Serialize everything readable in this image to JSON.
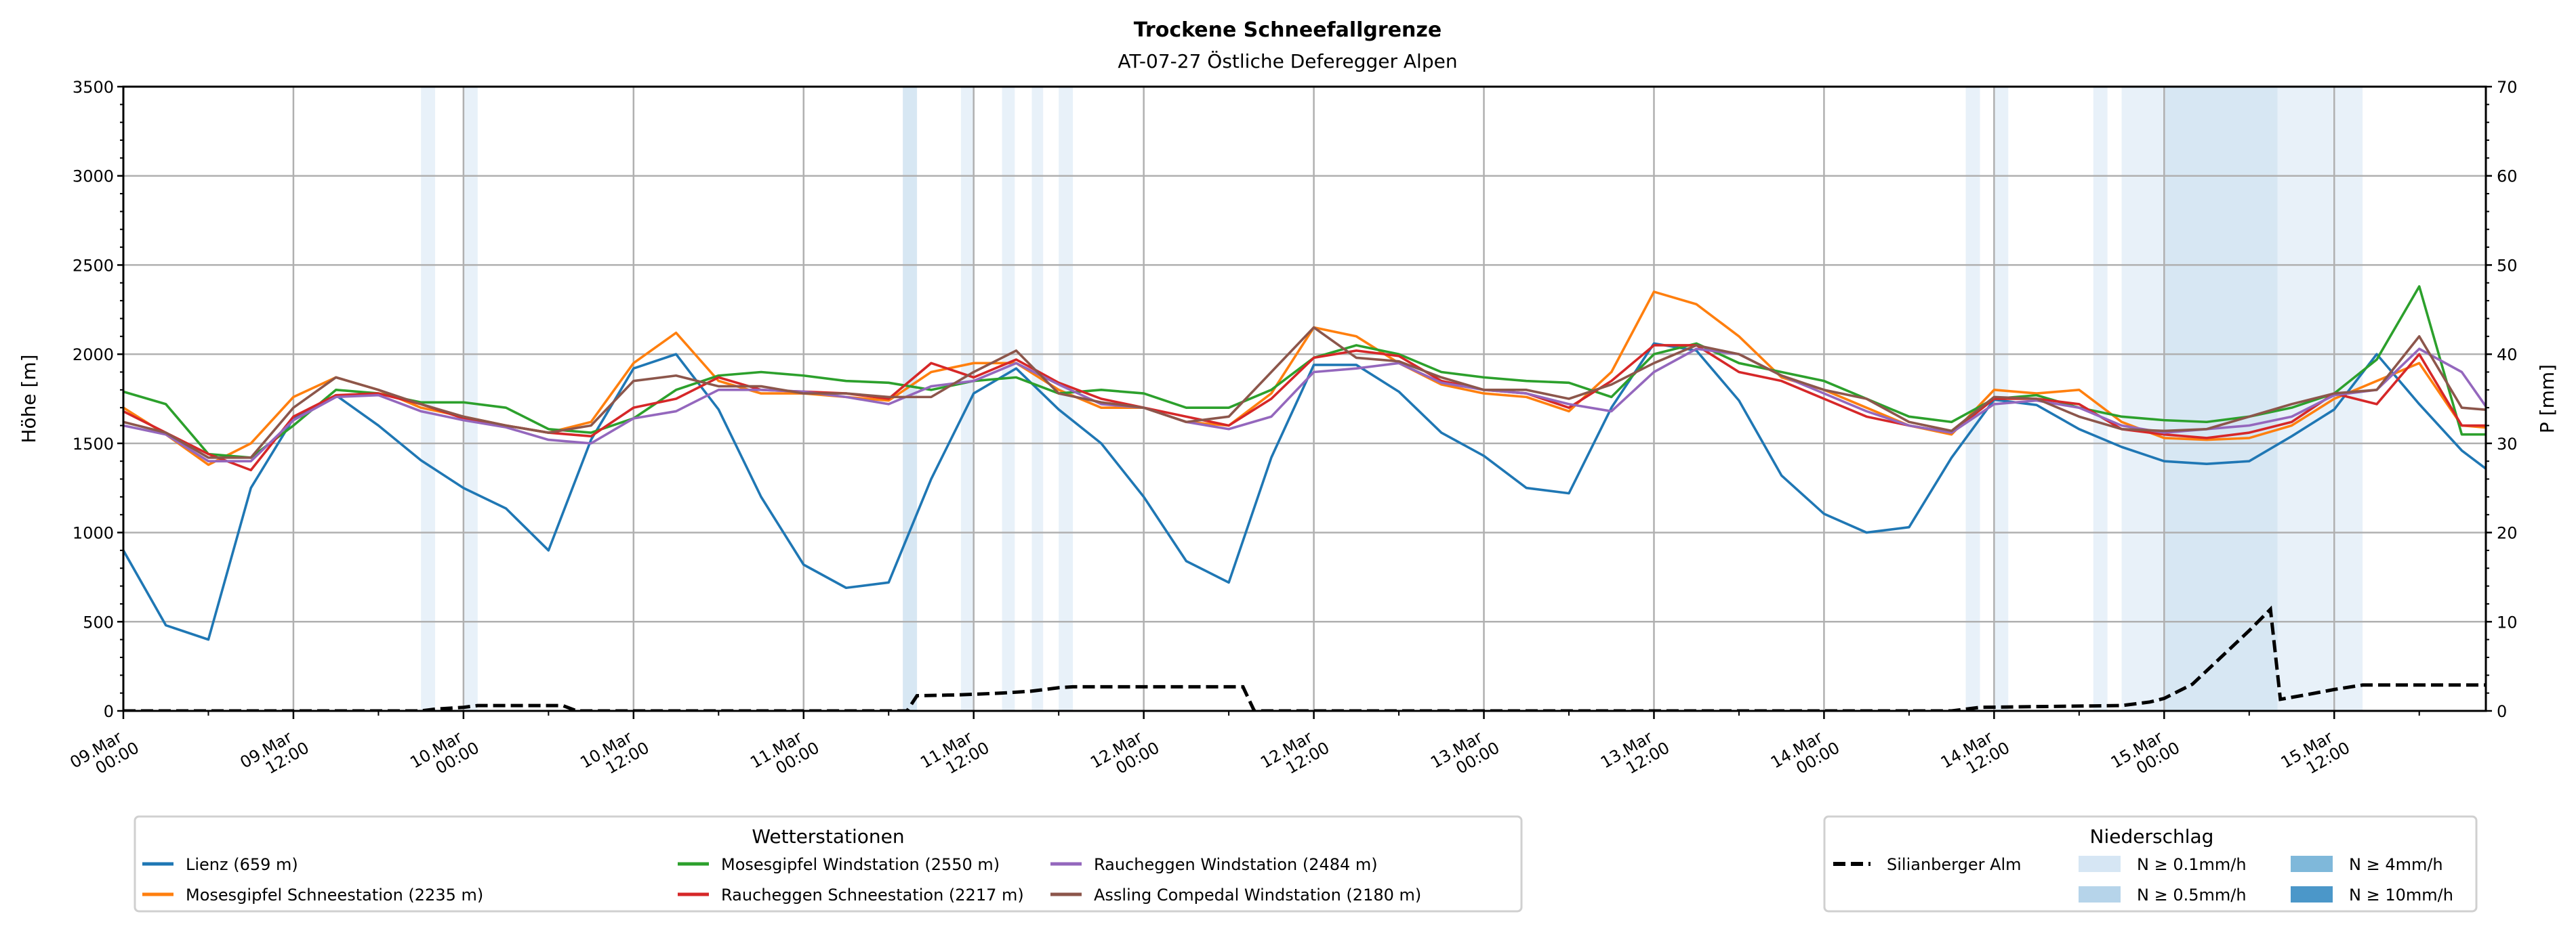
{
  "chart_data": {
    "type": "line",
    "title": "Trockene Schneefallgrenze",
    "subtitle": "AT-07-27 Östliche Deferegger Alpen",
    "ylabel": "Höhe [m]",
    "ylabel_right": "P [mm]",
    "ylim": [
      0,
      3500
    ],
    "ylim_right": [
      0,
      70
    ],
    "y_ticks": [
      "0",
      "500",
      "1000",
      "1500",
      "2000",
      "2500",
      "3000",
      "3500"
    ],
    "y_ticks_right": [
      "0",
      "10",
      "20",
      "30",
      "40",
      "50",
      "60",
      "70"
    ],
    "x_unit": "hours since 09.Mar 00:00",
    "xlim": [
      0,
      166.7
    ],
    "x_ticks": [
      {
        "h": 0,
        "l1": "09.Mar",
        "l2": "00:00"
      },
      {
        "h": 12,
        "l1": "09.Mar",
        "l2": "12:00"
      },
      {
        "h": 24,
        "l1": "10.Mar",
        "l2": "00:00"
      },
      {
        "h": 36,
        "l1": "10.Mar",
        "l2": "12:00"
      },
      {
        "h": 48,
        "l1": "11.Mar",
        "l2": "00:00"
      },
      {
        "h": 60,
        "l1": "11.Mar",
        "l2": "12:00"
      },
      {
        "h": 72,
        "l1": "12.Mar",
        "l2": "00:00"
      },
      {
        "h": 84,
        "l1": "12.Mar",
        "l2": "12:00"
      },
      {
        "h": 96,
        "l1": "13.Mar",
        "l2": "00:00"
      },
      {
        "h": 108,
        "l1": "13.Mar",
        "l2": "12:00"
      },
      {
        "h": 120,
        "l1": "14.Mar",
        "l2": "00:00"
      },
      {
        "h": 132,
        "l1": "14.Mar",
        "l2": "12:00"
      },
      {
        "h": 144,
        "l1": "15.Mar",
        "l2": "00:00"
      },
      {
        "h": 156,
        "l1": "15.Mar",
        "l2": "12:00"
      }
    ],
    "grid": true,
    "series_step_hours": 3,
    "series": [
      {
        "name": "Lienz (659 m)",
        "color": "#1f77b4",
        "values": [
          900,
          480,
          400,
          1250,
          1640,
          1770,
          1600,
          1405,
          1250,
          1135,
          900,
          1520,
          1920,
          2000,
          1690,
          1200,
          820,
          690,
          720,
          1300,
          1780,
          1920,
          1690,
          1500,
          1200,
          840,
          720,
          1420,
          1940,
          1940,
          1790,
          1560,
          1430,
          1250,
          1220,
          1700,
          2060,
          2020,
          1740,
          1320,
          1105,
          1000,
          1030,
          1420,
          1745,
          1715,
          1580,
          1480,
          1400,
          1385,
          1400,
          1540,
          1690,
          2000,
          1720,
          1460,
          1280
        ]
      },
      {
        "name": "Mosesgipfel Schneestation (2235 m)",
        "color": "#ff7f0e",
        "values": [
          1700,
          1550,
          1380,
          1500,
          1760,
          1870,
          1800,
          1700,
          1650,
          1600,
          1560,
          1620,
          1950,
          2120,
          1850,
          1780,
          1780,
          1760,
          1740,
          1900,
          1950,
          1950,
          1800,
          1700,
          1700,
          1620,
          1600,
          1780,
          2150,
          2100,
          1950,
          1830,
          1780,
          1760,
          1680,
          1900,
          2350,
          2280,
          2100,
          1870,
          1800,
          1700,
          1600,
          1550,
          1800,
          1780,
          1800,
          1620,
          1530,
          1520,
          1530,
          1600,
          1750,
          1850,
          1950,
          1600,
          1580
        ]
      },
      {
        "name": "Mosesgipfel Windstation (2550 m)",
        "color": "#2ca02c",
        "values": [
          1790,
          1720,
          1440,
          1420,
          1600,
          1800,
          1780,
          1730,
          1730,
          1700,
          1580,
          1560,
          1640,
          1800,
          1880,
          1900,
          1880,
          1850,
          1840,
          1800,
          1850,
          1870,
          1780,
          1800,
          1780,
          1700,
          1700,
          1800,
          1980,
          2050,
          2000,
          1900,
          1870,
          1850,
          1840,
          1760,
          2000,
          2060,
          1950,
          1900,
          1850,
          1750,
          1650,
          1620,
          1750,
          1770,
          1700,
          1650,
          1630,
          1620,
          1650,
          1700,
          1780,
          1970,
          2380,
          1550,
          1550
        ]
      },
      {
        "name": "Raucheggen Schneestation (2217 m)",
        "color": "#d62728",
        "values": [
          1680,
          1560,
          1440,
          1350,
          1650,
          1770,
          1780,
          1720,
          1640,
          1600,
          1560,
          1540,
          1700,
          1750,
          1870,
          1800,
          1790,
          1780,
          1750,
          1950,
          1870,
          1970,
          1840,
          1750,
          1700,
          1650,
          1600,
          1750,
          1980,
          2020,
          1990,
          1850,
          1800,
          1780,
          1700,
          1850,
          2050,
          2050,
          1900,
          1850,
          1750,
          1650,
          1600,
          1560,
          1750,
          1750,
          1720,
          1580,
          1550,
          1530,
          1560,
          1620,
          1780,
          1720,
          2000,
          1600,
          1600
        ]
      },
      {
        "name": "Raucheggen Windstation (2484 m)",
        "color": "#9467bd",
        "values": [
          1600,
          1550,
          1400,
          1400,
          1630,
          1760,
          1770,
          1680,
          1630,
          1590,
          1520,
          1500,
          1640,
          1680,
          1800,
          1800,
          1790,
          1760,
          1720,
          1820,
          1850,
          1950,
          1830,
          1720,
          1700,
          1620,
          1580,
          1650,
          1900,
          1920,
          1950,
          1840,
          1800,
          1780,
          1720,
          1680,
          1900,
          2030,
          2000,
          1880,
          1780,
          1680,
          1600,
          1560,
          1720,
          1740,
          1700,
          1600,
          1560,
          1580,
          1600,
          1650,
          1770,
          1800,
          2030,
          1900,
          1560
        ]
      },
      {
        "name": "Assling Compedal Windstation (2180 m)",
        "color": "#8c564b",
        "values": [
          1620,
          1560,
          1420,
          1420,
          1700,
          1870,
          1800,
          1720,
          1650,
          1600,
          1560,
          1600,
          1850,
          1880,
          1820,
          1820,
          1780,
          1780,
          1760,
          1760,
          1900,
          2020,
          1780,
          1730,
          1700,
          1620,
          1650,
          1900,
          2150,
          1980,
          1960,
          1870,
          1800,
          1800,
          1750,
          1830,
          1950,
          2050,
          2000,
          1880,
          1800,
          1750,
          1620,
          1570,
          1760,
          1750,
          1650,
          1580,
          1570,
          1580,
          1650,
          1720,
          1780,
          1800,
          2100,
          1700,
          1680
        ]
      }
    ],
    "precip_series": {
      "name": "Silianberger Alm",
      "color": "#000000",
      "points": [
        [
          0,
          0
        ],
        [
          21,
          0
        ],
        [
          22,
          0.2
        ],
        [
          24,
          0.4
        ],
        [
          25,
          0.6
        ],
        [
          31,
          0.6
        ],
        [
          32,
          0
        ],
        [
          55.3,
          0
        ],
        [
          56,
          1.7
        ],
        [
          59,
          1.8
        ],
        [
          62,
          2.0
        ],
        [
          64,
          2.2
        ],
        [
          66,
          2.6
        ],
        [
          67,
          2.7
        ],
        [
          79,
          2.7
        ],
        [
          79.8,
          0
        ],
        [
          129,
          0
        ],
        [
          131,
          0.4
        ],
        [
          141,
          0.6
        ],
        [
          143,
          1.0
        ],
        [
          144,
          1.4
        ],
        [
          146,
          3.0
        ],
        [
          148,
          6.0
        ],
        [
          150,
          9.0
        ],
        [
          151.5,
          11.4
        ],
        [
          152.2,
          1.3
        ],
        [
          154,
          1.8
        ],
        [
          156,
          2.4
        ],
        [
          158,
          2.9
        ],
        [
          166.7,
          2.9
        ]
      ]
    },
    "precip_bands": [
      {
        "from": 21,
        "to": 22,
        "level": 0
      },
      {
        "from": 24,
        "to": 25,
        "level": 0
      },
      {
        "from": 55,
        "to": 56,
        "level": 1
      },
      {
        "from": 59.1,
        "to": 60,
        "level": 0
      },
      {
        "from": 62,
        "to": 62.9,
        "level": 0
      },
      {
        "from": 64.1,
        "to": 64.9,
        "level": 0
      },
      {
        "from": 66,
        "to": 67,
        "level": 0
      },
      {
        "from": 130,
        "to": 131,
        "level": 0
      },
      {
        "from": 132,
        "to": 133,
        "level": 0
      },
      {
        "from": 139,
        "to": 140,
        "level": 0
      },
      {
        "from": 141,
        "to": 144,
        "level": 0
      },
      {
        "from": 144,
        "to": 152,
        "level": 1
      },
      {
        "from": 152,
        "to": 158,
        "level": 0
      }
    ],
    "legend_stations": {
      "title": "Wetterstationen",
      "placement": "bottom-left"
    },
    "legend_precip": {
      "title": "Niederschlag",
      "placement": "bottom-right",
      "levels": [
        {
          "label": "N ≥ 0.1mm/h",
          "color": "#d6e6f4"
        },
        {
          "label": "N ≥ 0.5mm/h",
          "color": "#b6d4ea"
        },
        {
          "label": "N ≥ 4mm/h",
          "color": "#7fb8da"
        },
        {
          "label": "N ≥ 10mm/h",
          "color": "#4b97c9"
        }
      ]
    }
  }
}
